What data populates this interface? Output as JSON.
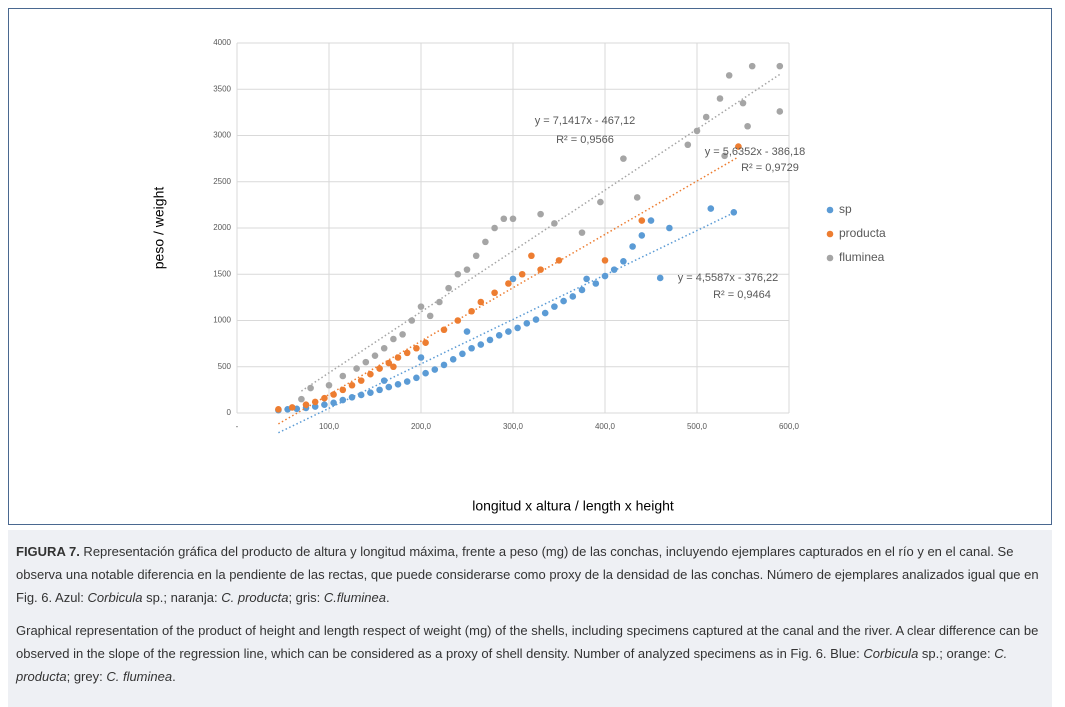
{
  "chart_data": {
    "type": "scatter",
    "x_label": "longitud x altura / length x height",
    "y_label": "peso / weight",
    "xlim": [
      0,
      600
    ],
    "ylim": [
      0,
      4000
    ],
    "xticks": [
      {
        "value": 0,
        "label": "-"
      },
      {
        "value": 100,
        "label": "100,0"
      },
      {
        "value": 200,
        "label": "200,0"
      },
      {
        "value": 300,
        "label": "300,0"
      },
      {
        "value": 400,
        "label": "400,0"
      },
      {
        "value": 500,
        "label": "500,0"
      },
      {
        "value": 600,
        "label": "600,0"
      }
    ],
    "yticks": [
      0,
      500,
      1000,
      1500,
      2000,
      2500,
      3000,
      3500,
      4000
    ],
    "grid": true,
    "legend": "right",
    "series": [
      {
        "name": "sp",
        "color": "#5b9bd5",
        "trendline_label": [
          "y = 4,5587x - 376,22",
          "R² = 0,9464"
        ],
        "x": [
          45,
          55,
          65,
          75,
          85,
          95,
          105,
          115,
          125,
          135,
          145,
          155,
          165,
          175,
          185,
          195,
          205,
          215,
          225,
          235,
          245,
          255,
          265,
          275,
          285,
          295,
          305,
          315,
          325,
          335,
          345,
          355,
          365,
          375,
          390,
          400,
          410,
          420,
          430,
          440,
          450,
          470,
          460,
          515,
          540,
          300,
          250,
          380,
          200,
          160
        ],
        "values": [
          30,
          40,
          45,
          55,
          70,
          90,
          110,
          140,
          170,
          195,
          220,
          250,
          280,
          310,
          340,
          380,
          430,
          470,
          520,
          580,
          640,
          700,
          740,
          790,
          840,
          880,
          920,
          970,
          1010,
          1080,
          1150,
          1210,
          1260,
          1330,
          1400,
          1480,
          1550,
          1640,
          1800,
          1920,
          2080,
          2000,
          1460,
          2210,
          2170,
          1450,
          880,
          1450,
          600,
          350
        ]
      },
      {
        "name": "producta",
        "color": "#ed7d31",
        "trendline_label": [
          "y = 5,6352x - 386,18",
          "R² = 0,9729"
        ],
        "x": [
          45,
          60,
          75,
          85,
          95,
          105,
          115,
          125,
          135,
          145,
          155,
          165,
          175,
          185,
          195,
          205,
          225,
          240,
          255,
          265,
          280,
          295,
          310,
          320,
          350,
          400,
          440,
          545,
          330,
          170
        ],
        "values": [
          40,
          60,
          90,
          120,
          160,
          200,
          250,
          300,
          350,
          420,
          480,
          540,
          600,
          650,
          700,
          760,
          900,
          1000,
          1100,
          1200,
          1300,
          1400,
          1500,
          1700,
          1650,
          1650,
          2080,
          2880,
          1550,
          500
        ]
      },
      {
        "name": "fluminea",
        "color": "#a5a5a5",
        "trendline_label": [
          "y = 7,1417x - 467,12",
          "R² = 0,9566"
        ],
        "x": [
          70,
          80,
          100,
          115,
          130,
          140,
          150,
          160,
          170,
          180,
          190,
          200,
          210,
          220,
          230,
          240,
          250,
          260,
          270,
          280,
          290,
          300,
          330,
          345,
          375,
          395,
          420,
          435,
          490,
          500,
          510,
          525,
          535,
          550,
          560,
          590,
          590,
          555,
          530
        ],
        "values": [
          150,
          270,
          300,
          400,
          480,
          550,
          620,
          700,
          800,
          850,
          1000,
          1150,
          1050,
          1200,
          1350,
          1500,
          1550,
          1700,
          1850,
          2000,
          2100,
          2100,
          2150,
          2050,
          1950,
          2280,
          2750,
          2330,
          2900,
          3050,
          3200,
          3400,
          3650,
          3350,
          3750,
          3750,
          3260,
          3100,
          2780
        ]
      }
    ]
  },
  "caption": {
    "es": [
      "FIGURA 7.",
      " Representación gráfica del producto de altura y longitud máxima, frente a peso (mg) de las conchas, incluyendo ejemplares capturados en el río y en el canal. Se observa una notable diferencia en la pendiente de las rectas, que puede considerarse como proxy de la densidad de las conchas. Número de ejemplares analizados igual que en Fig. 6. Azul: ",
      "Corbicula",
      " sp.; naranja: ",
      "C. producta",
      "; gris: ",
      "C.fluminea",
      "."
    ],
    "en": [
      "Graphical representation of the product of height and length respect of weight (mg) of the shells, including specimens captured at the canal and the river. A clear difference can be observed in the slope of the regression line, which can be considered as a proxy of shell density. Number of analyzed specimens as in Fig. 6. Blue: ",
      "Corbicula",
      " sp.; orange: ",
      "C. producta",
      "; grey: ",
      "C. fluminea",
      "."
    ]
  }
}
